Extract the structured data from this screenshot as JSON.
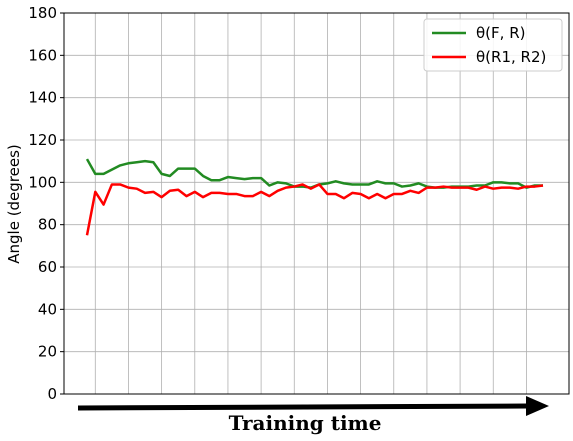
{
  "chart_data": {
    "type": "line",
    "ylabel": "Angle (degrees)",
    "xlabel": "",
    "ylim": [
      0,
      180
    ],
    "yticks": [
      0,
      20,
      40,
      60,
      80,
      100,
      120,
      140,
      160,
      180
    ],
    "grid": true,
    "legend_position": "top-right",
    "annotation": "Training time",
    "series": [
      {
        "name": "θ(F, R)",
        "color": "#228B22",
        "values": [
          111,
          104,
          104,
          106,
          108,
          109,
          109.5,
          110,
          109.5,
          104,
          103,
          106.5,
          106.5,
          106.5,
          103,
          101,
          101,
          102.5,
          102,
          101.5,
          102,
          102,
          98.5,
          100,
          99.5,
          98,
          98,
          97.5,
          99,
          99.5,
          100.5,
          99.5,
          99,
          99,
          99,
          100.5,
          99.5,
          99.5,
          98,
          98.5,
          99.5,
          98,
          97.5,
          97.5,
          98,
          98,
          98,
          98.5,
          98.5,
          100,
          100,
          99.5,
          99.5,
          97.5,
          98.5,
          98.5
        ]
      },
      {
        "name": "θ(R1, R2)",
        "color": "#ff0000",
        "values": [
          75,
          95.5,
          89.5,
          99,
          99,
          97.5,
          97,
          95,
          95.5,
          93,
          96,
          96.5,
          93.5,
          95.5,
          93,
          95,
          95,
          94.5,
          94.5,
          93.5,
          93.5,
          95.5,
          93.5,
          96,
          97.5,
          98,
          99,
          97,
          99,
          94.5,
          94.5,
          92.5,
          95,
          94.5,
          92.5,
          94.5,
          92.5,
          94.5,
          94.5,
          96,
          95,
          97.5,
          97.5,
          98,
          97.5,
          97.5,
          97.5,
          96.5,
          98,
          97,
          97.5,
          97.5,
          97,
          98,
          98,
          98.5
        ]
      }
    ]
  }
}
